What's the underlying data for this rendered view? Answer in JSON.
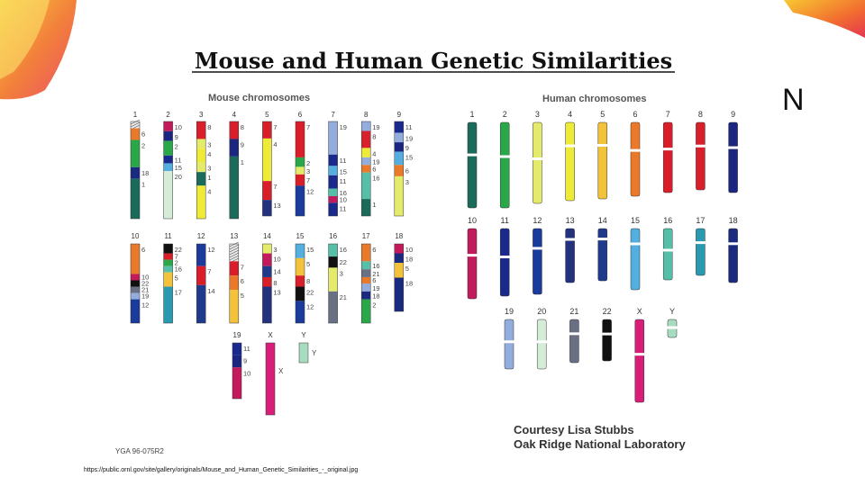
{
  "figure": {
    "title": "Mouse and Human Genetic Similarities",
    "mouse_heading": "Mouse chromosomes",
    "human_heading": "Human chromosomes",
    "figure_code": "YGA 96-075R2",
    "credit_line1": "Courtesy Lisa Stubbs",
    "credit_line2": "Oak Ridge National Laboratory",
    "source_url": "https://public.ornl.gov/site/gallery/originals/Mouse_and_Human_Genetic_Similarities_-_original.jpg",
    "side_letter": "N"
  },
  "colors": {
    "1": "#1a6b5a",
    "2": "#2aa748",
    "3": "#e4ea6a",
    "4": "#eeea38",
    "5": "#f2c23a",
    "6": "#ea7a2a",
    "7": "#d91e2a",
    "8": "#d8202a",
    "9": "#1a2680",
    "10": "#c21a5a",
    "11": "#1a2a8c",
    "12": "#1a3a9c",
    "13": "#23317e",
    "14": "#1f3a8a",
    "15": "#55aee0",
    "16": "#55bfa8",
    "17": "#2a9ab0",
    "18": "#1a2a80",
    "19": "#93aedc",
    "20": "#d4ecd8",
    "21": "#6a7084",
    "22": "#101010",
    "X": "#d91e7a",
    "Y": "#a8dcc0",
    "hatch": "#cfcfcf"
  },
  "human": [
    {
      "name": "1",
      "len": 95,
      "cen": 0.38,
      "c": "1"
    },
    {
      "name": "2",
      "len": 95,
      "cen": 0.4,
      "c": "2"
    },
    {
      "name": "3",
      "len": 90,
      "cen": 0.45,
      "c": "3"
    },
    {
      "name": "4",
      "len": 87,
      "cen": 0.3,
      "c": "4"
    },
    {
      "name": "5",
      "len": 85,
      "cen": 0.3,
      "c": "5"
    },
    {
      "name": "6",
      "len": 82,
      "cen": 0.38,
      "c": "6"
    },
    {
      "name": "7",
      "len": 78,
      "cen": 0.38,
      "c": "7"
    },
    {
      "name": "8",
      "len": 75,
      "cen": 0.35,
      "c": "8"
    },
    {
      "name": "9",
      "len": 78,
      "cen": 0.36,
      "c": "9"
    },
    {
      "name": "10",
      "len": 78,
      "cen": 0.38,
      "c": "10"
    },
    {
      "name": "11",
      "len": 75,
      "cen": 0.42,
      "c": "11"
    },
    {
      "name": "12",
      "len": 73,
      "cen": 0.3,
      "c": "12"
    },
    {
      "name": "13",
      "len": 60,
      "cen": 0.2,
      "c": "13"
    },
    {
      "name": "14",
      "len": 58,
      "cen": 0.2,
      "c": "14"
    },
    {
      "name": "15",
      "len": 68,
      "cen": 0.25,
      "c": "15"
    },
    {
      "name": "16",
      "len": 57,
      "cen": 0.42,
      "c": "16"
    },
    {
      "name": "17",
      "len": 52,
      "cen": 0.3,
      "c": "17"
    },
    {
      "name": "18",
      "len": 60,
      "cen": 0.28,
      "c": "18"
    },
    {
      "name": "19",
      "len": 55,
      "cen": 0.45,
      "c": "19"
    },
    {
      "name": "20",
      "len": 55,
      "cen": 0.45,
      "c": "20"
    },
    {
      "name": "21",
      "len": 48,
      "cen": 0.33,
      "c": "21"
    },
    {
      "name": "22",
      "len": 46,
      "cen": 0.35,
      "c": "22"
    },
    {
      "name": "X",
      "len": 92,
      "cen": 0.42,
      "c": "X"
    },
    {
      "name": "Y",
      "len": 20,
      "cen": 0.45,
      "c": "Y"
    }
  ],
  "mouse": [
    {
      "name": "1",
      "len": 108,
      "segs": [
        [
          "hatch",
          "",
          0.07
        ],
        [
          "6",
          "6",
          0.12
        ],
        [
          "2",
          "2",
          0.28
        ],
        [
          "18",
          "18",
          0.12
        ],
        [
          "1",
          "1",
          0.41
        ]
      ]
    },
    {
      "name": "2",
      "len": 108,
      "segs": [
        [
          "10",
          "10",
          0.1
        ],
        [
          "9",
          "9",
          0.1
        ],
        [
          "2",
          "2",
          0.15
        ],
        [
          "11",
          "11",
          0.08
        ],
        [
          "15",
          "15",
          0.08
        ],
        [
          "20",
          "20",
          0.49
        ]
      ]
    },
    {
      "name": "3",
      "len": 108,
      "segs": [
        [
          "8",
          "8",
          0.18
        ],
        [
          "3",
          "3",
          0.1
        ],
        [
          "4",
          "4",
          0.14
        ],
        [
          "3",
          "3",
          0.1
        ],
        [
          "1",
          "1",
          0.14
        ],
        [
          "4",
          "4",
          0.34
        ]
      ]
    },
    {
      "name": "4",
      "len": 108,
      "segs": [
        [
          "8",
          "8",
          0.18
        ],
        [
          "9",
          "9",
          0.18
        ],
        [
          "1",
          "1",
          0.64
        ]
      ]
    },
    {
      "name": "5",
      "len": 105,
      "segs": [
        [
          "7",
          "7",
          0.18
        ],
        [
          "4",
          "4",
          0.45
        ],
        [
          "7",
          "7",
          0.2
        ],
        [
          "13",
          "13",
          0.17
        ]
      ]
    },
    {
      "name": "6",
      "len": 105,
      "segs": [
        [
          "7",
          "7",
          0.38
        ],
        [
          "2",
          "2",
          0.1
        ],
        [
          "3",
          "3",
          0.08
        ],
        [
          "7",
          "7",
          0.12
        ],
        [
          "12",
          "12",
          0.32
        ]
      ]
    },
    {
      "name": "7",
      "len": 105,
      "segs": [
        [
          "19",
          "19",
          0.35
        ],
        [
          "11",
          "11",
          0.12
        ],
        [
          "15",
          "15",
          0.1
        ],
        [
          "11",
          "11",
          0.14
        ],
        [
          "16",
          "16",
          0.08
        ],
        [
          "10",
          "10",
          0.07
        ],
        [
          "11",
          "11",
          0.14
        ]
      ]
    },
    {
      "name": "8",
      "len": 105,
      "segs": [
        [
          "19",
          "19",
          0.1
        ],
        [
          "8",
          "8",
          0.18
        ],
        [
          "4",
          "4",
          0.1
        ],
        [
          "19",
          "19",
          0.08
        ],
        [
          "6",
          "6",
          0.08
        ],
        [
          "16",
          "16",
          0.28
        ],
        [
          "1",
          "1",
          0.18
        ]
      ]
    },
    {
      "name": "9",
      "len": 105,
      "segs": [
        [
          "11",
          "11",
          0.12
        ],
        [
          "19",
          "19",
          0.1
        ],
        [
          "9",
          "9",
          0.1
        ],
        [
          "15",
          "15",
          0.14
        ],
        [
          "6",
          "6",
          0.12
        ],
        [
          "3",
          "3",
          0.42
        ]
      ]
    },
    {
      "name": "10",
      "len": 88,
      "segs": [
        [
          "6",
          "6",
          0.38
        ],
        [
          "10",
          "10",
          0.08
        ],
        [
          "22",
          "22",
          0.08
        ],
        [
          "21",
          "21",
          0.08
        ],
        [
          "19",
          "19",
          0.08
        ],
        [
          "12",
          "12",
          0.3
        ]
      ]
    },
    {
      "name": "11",
      "len": 88,
      "segs": [
        [
          "22",
          "22",
          0.12
        ],
        [
          "7",
          "7",
          0.08
        ],
        [
          "2",
          "2",
          0.08
        ],
        [
          "16",
          "16",
          0.08
        ],
        [
          "5",
          "5",
          0.18
        ],
        [
          "17",
          "17",
          0.46
        ]
      ]
    },
    {
      "name": "12",
      "len": 88,
      "segs": [
        [
          "12",
          "12",
          0.28
        ],
        [
          "7",
          "7",
          0.24
        ],
        [
          "14",
          "14",
          0.48
        ]
      ]
    },
    {
      "name": "13",
      "len": 88,
      "segs": [
        [
          "hatch",
          "",
          0.22
        ],
        [
          "7",
          "7",
          0.18
        ],
        [
          "6",
          "6",
          0.18
        ],
        [
          "5",
          "5",
          0.42
        ]
      ]
    },
    {
      "name": "14",
      "len": 88,
      "segs": [
        [
          "3",
          "3",
          0.12
        ],
        [
          "10",
          "10",
          0.16
        ],
        [
          "14",
          "14",
          0.14
        ],
        [
          "8",
          "8",
          0.12
        ],
        [
          "13",
          "13",
          0.46
        ]
      ]
    },
    {
      "name": "15",
      "len": 88,
      "segs": [
        [
          "15",
          "15",
          0.18
        ],
        [
          "5",
          "5",
          0.22
        ],
        [
          "8",
          "8",
          0.14
        ],
        [
          "22",
          "22",
          0.18
        ],
        [
          "12",
          "12",
          0.28
        ]
      ]
    },
    {
      "name": "16",
      "len": 88,
      "segs": [
        [
          "16",
          "16",
          0.16
        ],
        [
          "22",
          "22",
          0.14
        ],
        [
          "3",
          "3",
          0.3
        ],
        [
          "21",
          "21",
          0.4
        ]
      ]
    },
    {
      "name": "17",
      "len": 88,
      "segs": [
        [
          "6",
          "6",
          0.22
        ],
        [
          "16",
          "16",
          0.1
        ],
        [
          "21",
          "21",
          0.1
        ],
        [
          "6",
          "6",
          0.08
        ],
        [
          "19",
          "19",
          0.1
        ],
        [
          "18",
          "18",
          0.1
        ],
        [
          "2",
          "2",
          0.3
        ]
      ]
    },
    {
      "name": "18",
      "len": 75,
      "segs": [
        [
          "10",
          "10",
          0.14
        ],
        [
          "18",
          "18",
          0.14
        ],
        [
          "5",
          "5",
          0.22
        ],
        [
          "18",
          "18",
          0.5
        ]
      ]
    },
    {
      "name": "19",
      "len": 62,
      "segs": [
        [
          "11",
          "11",
          0.22
        ],
        [
          "9",
          "9",
          0.22
        ],
        [
          "10",
          "10",
          0.56
        ]
      ]
    },
    {
      "name": "X",
      "len": 80,
      "segs": [
        [
          "X",
          "X",
          1.0
        ]
      ]
    },
    {
      "name": "Y",
      "len": 22,
      "segs": [
        [
          "Y",
          "Y",
          1.0
        ]
      ]
    }
  ]
}
